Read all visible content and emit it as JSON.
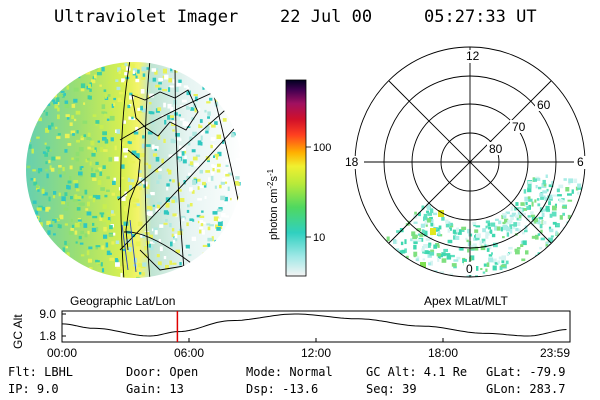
{
  "header": {
    "title": "Ultraviolet Imager",
    "date": "22 Jul 00",
    "time": "05:27:33 UT"
  },
  "colorbar": {
    "label": "photon cm",
    "label_sup1": "-2",
    "label_mid": "s",
    "label_sup2": "-1",
    "ticks": [
      "100",
      "10"
    ],
    "tick_values": [
      100,
      10
    ]
  },
  "geo_panel": {
    "label": "Geographic Lat/Lon"
  },
  "polar_panel": {
    "label": "Apex MLat/MLT",
    "mlt_labels": {
      "top": "12",
      "left": "18",
      "right": "6",
      "bottom": "0"
    },
    "lat_labels": [
      "60",
      "70",
      "80"
    ]
  },
  "altitude_plot": {
    "ylabel": "GC Alt",
    "yticks": [
      "9.0",
      "1.8"
    ],
    "xticks": [
      "00:00",
      "06:00",
      "12:00",
      "18:00",
      "23:59"
    ],
    "marker_time": "05:27:33",
    "marker_color": "#e00000"
  },
  "status": {
    "row1": {
      "flt": "Flt: LBHL",
      "door": "Door: Open",
      "mode": "Mode: Normal",
      "gcalt": "GC Alt: 4.1 Re",
      "glat": "GLat: -79.9"
    },
    "row2": {
      "ip": "IP: 9.0",
      "gain": "Gain: 13",
      "dsp": "Dsp: -13.6",
      "seq": "Seq: 39",
      "glon": "GLon: 283.7"
    }
  }
}
